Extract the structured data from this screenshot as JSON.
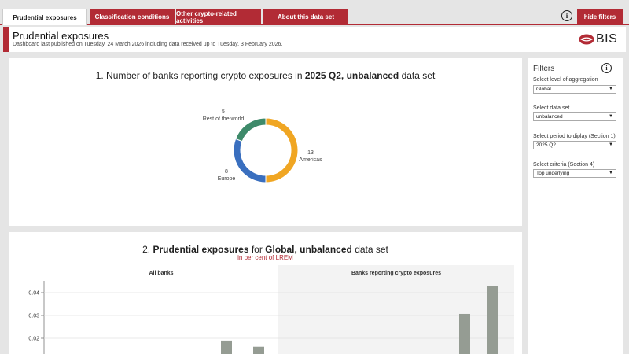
{
  "tabs": [
    {
      "label": "Prudential exposures",
      "active": true
    },
    {
      "label": "Classification conditions",
      "active": false
    },
    {
      "label": "Other crypto-related activities",
      "active": false
    },
    {
      "label": "About this data set",
      "active": false
    }
  ],
  "toolbar": {
    "info_icon": "info-icon",
    "hide_filters_label": "hide filters"
  },
  "header": {
    "title": "Prudential exposures",
    "subtitle": "Dashboard last published on Tuesday, 24 March 2026 including data received up to Tuesday, 3 February 2026.",
    "logo_text": "BIS"
  },
  "section1": {
    "title_prefix": "1. Number of banks reporting crypto exposures in ",
    "title_bold": "2025 Q2, unbalanced",
    "title_suffix": " data set"
  },
  "section2": {
    "title_prefix": "2. ",
    "title_bold1": "Prudential exposures",
    "title_mid": " for ",
    "title_bold2": "Global, unbalanced",
    "title_suffix": " data set",
    "subtitle": "in per cent of LREM",
    "panel_all_banks": "All banks",
    "panel_crypto": "Banks reporting crypto exposures"
  },
  "filters": {
    "title": "Filters",
    "items": [
      {
        "label": "Select level of aggregation",
        "value": "Global"
      },
      {
        "label": "Select data set",
        "value": "unbalanced"
      },
      {
        "label": "Select period to diplay (Section 1)",
        "value": "2025 Q2"
      },
      {
        "label": "Select criteria (Section 4)",
        "value": "Top underlying"
      }
    ]
  },
  "colors": {
    "accent": "#b22b35",
    "americas": "#f0a623",
    "europe": "#3a6fbf",
    "rest": "#3e8a6a",
    "bar": "#959c93"
  },
  "chart_data": [
    {
      "type": "pie",
      "title": "1. Number of banks reporting crypto exposures in 2025 Q2, unbalanced data set",
      "categories": [
        "Americas",
        "Europe",
        "Rest of the world"
      ],
      "values": [
        13,
        8,
        5
      ]
    },
    {
      "type": "bar",
      "title": "2. Prudential exposures for Global, unbalanced data set",
      "subtitle": "in per cent of LREM",
      "y_ticks": [
        "0.02",
        "0.03",
        "0.04"
      ],
      "ylim": [
        0.02,
        0.04
      ],
      "panels": [
        {
          "name": "All banks",
          "values": [
            0.019,
            0.0163
          ]
        },
        {
          "name": "Banks reporting crypto exposures",
          "values": [
            0.0307,
            0.0428
          ]
        }
      ]
    }
  ]
}
